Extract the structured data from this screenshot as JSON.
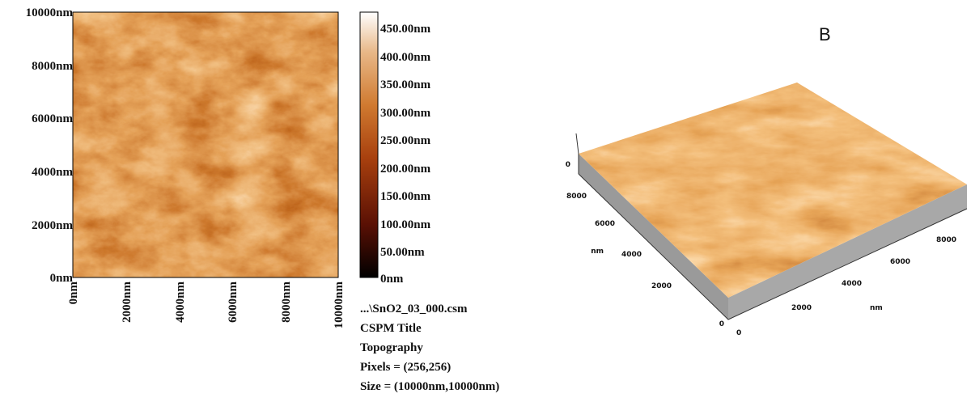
{
  "panel_a": {
    "y_axis_labels": [
      "10000nm",
      "8000nm",
      "6000nm",
      "4000nm",
      "2000nm",
      "0nm"
    ],
    "x_axis_labels": [
      "0nm",
      "2000nm",
      "4000nm",
      "6000nm",
      "8000nm",
      "10000nm"
    ],
    "colorbar_labels": [
      "450.00nm",
      "400.00nm",
      "350.00nm",
      "300.00nm",
      "250.00nm",
      "200.00nm",
      "150.00nm",
      "100.00nm",
      "50.00nm",
      "0nm"
    ],
    "info": [
      "...\\SnO2_03_000.csm",
      "CSPM Title",
      "Topography",
      "Pixels = (256,256)",
      "Size = (10000nm,10000nm)"
    ]
  },
  "panel_b": {
    "label": "B",
    "left_axis_labels": [
      "0",
      "8000",
      "6000",
      "nm",
      "4000",
      "2000",
      "0"
    ],
    "right_axis_labels": [
      "0",
      "2000",
      "4000",
      "nm",
      "6000",
      "8000"
    ]
  }
}
